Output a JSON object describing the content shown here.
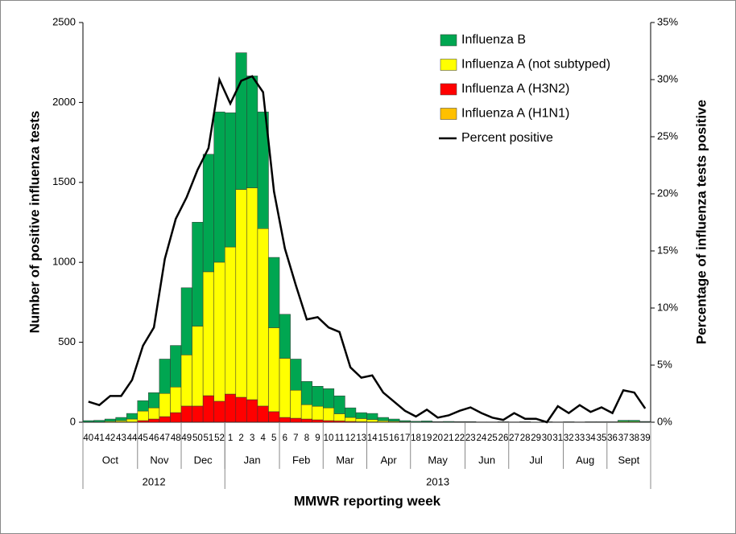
{
  "chart_data": {
    "type": "bar",
    "stacked": true,
    "x_label": "MMWR reporting week",
    "y_label": "Number of positive influenza tests",
    "y2_label": "Percentage of influenza tests positive",
    "categories": [
      "40",
      "41",
      "42",
      "43",
      "44",
      "45",
      "46",
      "47",
      "48",
      "49",
      "50",
      "51",
      "52",
      "1",
      "2",
      "3",
      "4",
      "5",
      "6",
      "7",
      "8",
      "9",
      "10",
      "11",
      "12",
      "13",
      "14",
      "15",
      "16",
      "17",
      "18",
      "19",
      "20",
      "21",
      "22",
      "23",
      "24",
      "25",
      "26",
      "27",
      "28",
      "29",
      "30",
      "31",
      "32",
      "33",
      "34",
      "35",
      "36",
      "37",
      "38",
      "39"
    ],
    "months": [
      {
        "label": "Oct",
        "weeks": 5
      },
      {
        "label": "Nov",
        "weeks": 4
      },
      {
        "label": "Dec",
        "weeks": 4
      },
      {
        "label": "Jan",
        "weeks": 5
      },
      {
        "label": "Feb",
        "weeks": 4
      },
      {
        "label": "Mar",
        "weeks": 4
      },
      {
        "label": "Apr",
        "weeks": 4
      },
      {
        "label": "May",
        "weeks": 5
      },
      {
        "label": "Jun",
        "weeks": 4
      },
      {
        "label": "Jul",
        "weeks": 5
      },
      {
        "label": "Aug",
        "weeks": 4
      },
      {
        "label": "Sept",
        "weeks": 4
      }
    ],
    "years": [
      {
        "label": "2012",
        "weeks": 13
      },
      {
        "label": "2013",
        "weeks": 39
      }
    ],
    "series": [
      {
        "name": "Influenza A (H1N1)",
        "color": "#ffc000",
        "values": [
          0,
          0,
          0,
          1,
          0,
          0,
          0,
          0,
          0,
          1,
          1,
          1,
          1,
          1,
          1,
          1,
          1,
          1,
          0,
          0,
          0,
          0,
          0,
          0,
          0,
          0,
          0,
          0,
          0,
          0,
          0,
          0,
          0,
          0,
          0,
          0,
          0,
          0,
          0,
          0,
          0,
          0,
          0,
          0,
          0,
          0,
          0,
          0,
          0,
          0,
          0,
          0
        ]
      },
      {
        "name": "Influenza A (H3N2)",
        "color": "#ff0000",
        "values": [
          0,
          0,
          0,
          1,
          2,
          10,
          20,
          35,
          60,
          100,
          100,
          165,
          130,
          175,
          155,
          140,
          100,
          65,
          30,
          25,
          20,
          15,
          10,
          8,
          5,
          3,
          2,
          1,
          1,
          0,
          0,
          0,
          0,
          0,
          0,
          0,
          0,
          0,
          0,
          0,
          0,
          0,
          0,
          0,
          0,
          0,
          0,
          0,
          0,
          0,
          0,
          0
        ]
      },
      {
        "name": "Influenza A (not subtyped)",
        "color": "#ffff00",
        "values": [
          2,
          2,
          5,
          8,
          18,
          60,
          70,
          145,
          160,
          320,
          500,
          775,
          870,
          920,
          1300,
          1325,
          1110,
          525,
          370,
          175,
          90,
          85,
          80,
          45,
          25,
          20,
          15,
          8,
          5,
          3,
          1,
          2,
          1,
          1,
          1,
          1,
          0,
          0,
          1,
          0,
          1,
          0,
          1,
          1,
          1,
          1,
          1,
          1,
          1,
          4,
          4,
          2
        ]
      },
      {
        "name": "Influenza B",
        "color": "#00a651",
        "values": [
          8,
          10,
          15,
          20,
          35,
          65,
          95,
          215,
          260,
          420,
          650,
          735,
          940,
          840,
          855,
          700,
          730,
          440,
          275,
          195,
          145,
          125,
          120,
          112,
          60,
          37,
          38,
          21,
          14,
          7,
          5,
          6,
          3,
          4,
          3,
          3,
          2,
          2,
          2,
          2,
          2,
          1,
          2,
          1,
          2,
          1,
          2,
          2,
          2,
          8,
          8,
          3
        ]
      },
      {
        "name": "Percent positive",
        "type": "line",
        "axis": "y2",
        "color": "#000000",
        "values": [
          1.8,
          1.5,
          2.3,
          2.3,
          3.7,
          6.7,
          8.3,
          14.3,
          17.8,
          19.7,
          22.1,
          24.0,
          30.0,
          27.9,
          29.9,
          30.3,
          28.9,
          20.2,
          15.2,
          12.0,
          9.0,
          9.2,
          8.3,
          7.9,
          4.8,
          3.9,
          4.1,
          2.6,
          1.8,
          1.0,
          0.5,
          1.1,
          0.4,
          0.6,
          1.0,
          1.3,
          0.8,
          0.4,
          0.2,
          0.8,
          0.3,
          0.3,
          0.0,
          1.4,
          0.8,
          1.5,
          0.9,
          1.3,
          0.8,
          2.8,
          2.6,
          1.2
        ]
      }
    ],
    "ylim": [
      0,
      2500
    ],
    "yticks": [
      0,
      500,
      1000,
      1500,
      2000,
      2500
    ],
    "y2lim": [
      0,
      35
    ],
    "y2ticks": [
      {
        "value": 0,
        "label": "0%"
      },
      {
        "value": 5,
        "label": "5%"
      },
      {
        "value": 10,
        "label": "10%"
      },
      {
        "value": 15,
        "label": "15%"
      },
      {
        "value": 20,
        "label": "20%"
      },
      {
        "value": 25,
        "label": "25%"
      },
      {
        "value": 30,
        "label": "30%"
      },
      {
        "value": 35,
        "label": "35%"
      }
    ],
    "legend": "top-right"
  }
}
